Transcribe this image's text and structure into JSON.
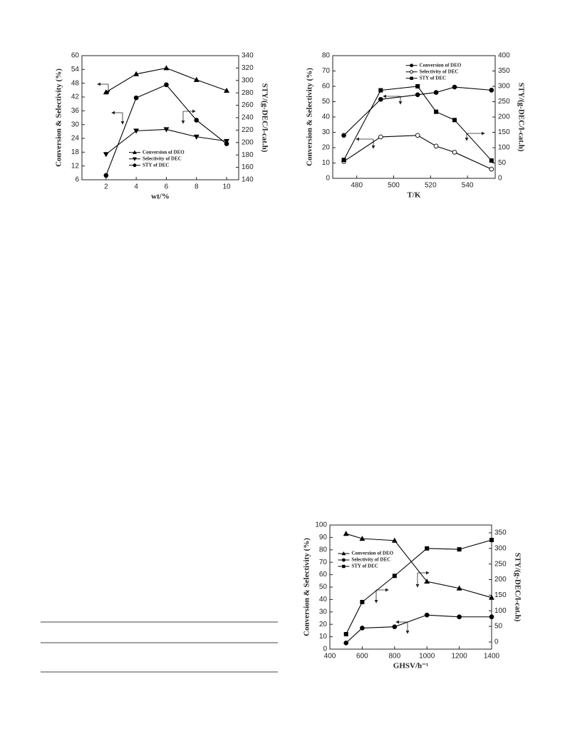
{
  "chart_data": [
    {
      "type": "line",
      "x_label": "wt/%",
      "y_label": "Conversion & Selectivity (%)",
      "y2_label": "STY/(g-DEC/l-cat.h)",
      "x": [
        2,
        4,
        6,
        8,
        10
      ],
      "xlim": [
        0.4,
        10.8
      ],
      "xticks": [
        2,
        4,
        6,
        8,
        10
      ],
      "ylim": [
        6,
        60
      ],
      "yticks": [
        6,
        12,
        18,
        24,
        30,
        36,
        42,
        48,
        54,
        60
      ],
      "y2lim": [
        140,
        340
      ],
      "y2ticks": [
        140,
        160,
        180,
        200,
        220,
        240,
        260,
        280,
        300,
        320,
        340
      ],
      "legend": "lower center",
      "series": [
        {
          "name": "Conversion of DEO",
          "color": "#000000",
          "marker": "triangle-up",
          "filled": true,
          "values": [
            44.1,
            52,
            54.6,
            49.5,
            44.8
          ]
        },
        {
          "name": "Selectivity of DEC",
          "color": "#000000",
          "marker": "triangle-down",
          "filled": true,
          "values": [
            17.1,
            27.3,
            27.9,
            24.7,
            22.8
          ]
        },
        {
          "name": "STY of DEC",
          "color": "#000000",
          "marker": "circle",
          "filled": true,
          "axis": "y2",
          "values": [
            147,
            272,
            293,
            236,
            198
          ]
        }
      ]
    },
    {
      "type": "line",
      "x_label": "T/K",
      "y_label": "Conversion & Selectivity (%)",
      "y2_label": "STY/(g-DEC/l-cat.h)",
      "x": [
        473,
        493,
        513,
        523,
        533,
        553
      ],
      "xlim": [
        467,
        555
      ],
      "xticks": [
        480,
        500,
        520,
        540
      ],
      "ylim": [
        0,
        80
      ],
      "yticks": [
        0,
        10,
        20,
        30,
        40,
        50,
        60,
        70,
        80
      ],
      "y2lim": [
        0,
        400
      ],
      "y2ticks": [
        0,
        50,
        100,
        150,
        200,
        250,
        300,
        350,
        400
      ],
      "legend": "upper center",
      "series": [
        {
          "name": "Conversion of DEO",
          "color": "#000000",
          "marker": "circle",
          "filled": true,
          "values": [
            28,
            51.5,
            54.5,
            56,
            59.5,
            57.5
          ]
        },
        {
          "name": "Selectivity of DEC",
          "color": "#000000",
          "marker": "circle",
          "filled": false,
          "values": [
            11,
            27,
            28,
            21,
            17,
            6
          ]
        },
        {
          "name": "STY of DEC",
          "color": "#000000",
          "marker": "square",
          "filled": true,
          "axis": "y2",
          "values": [
            60,
            287,
            300,
            217,
            190,
            58
          ]
        }
      ]
    },
    {
      "type": "line",
      "x_label": "GHSV/h⁻¹",
      "y_label": "Conversion & Selectivity (%)",
      "y2_label": "STY/(g-DEC/l-cat.h)",
      "x": [
        500,
        600,
        800,
        1000,
        1200,
        1400
      ],
      "xlim": [
        400,
        1400
      ],
      "xticks": [
        400,
        600,
        800,
        1000,
        1200,
        1400
      ],
      "ylim": [
        0,
        100
      ],
      "yticks": [
        0,
        10,
        20,
        30,
        40,
        50,
        60,
        70,
        80,
        90,
        100
      ],
      "y2lim": [
        -23,
        375
      ],
      "y2ticks": [
        0,
        50,
        100,
        150,
        200,
        250,
        300,
        350
      ],
      "legend": "center left",
      "series": [
        {
          "name": "Conversion of DEO",
          "color": "#000000",
          "marker": "triangle-up",
          "filled": true,
          "values": [
            93,
            89,
            87.5,
            54.5,
            49,
            41.5
          ]
        },
        {
          "name": "Selectivity of DEC",
          "color": "#000000",
          "marker": "circle",
          "filled": true,
          "values": [
            5,
            17,
            18,
            27.5,
            26,
            26
          ]
        },
        {
          "name": "STY of DEC",
          "color": "#000000",
          "marker": "square",
          "filled": true,
          "axis": "y2",
          "values": [
            25,
            128,
            212,
            300,
            297,
            327
          ]
        }
      ]
    }
  ]
}
